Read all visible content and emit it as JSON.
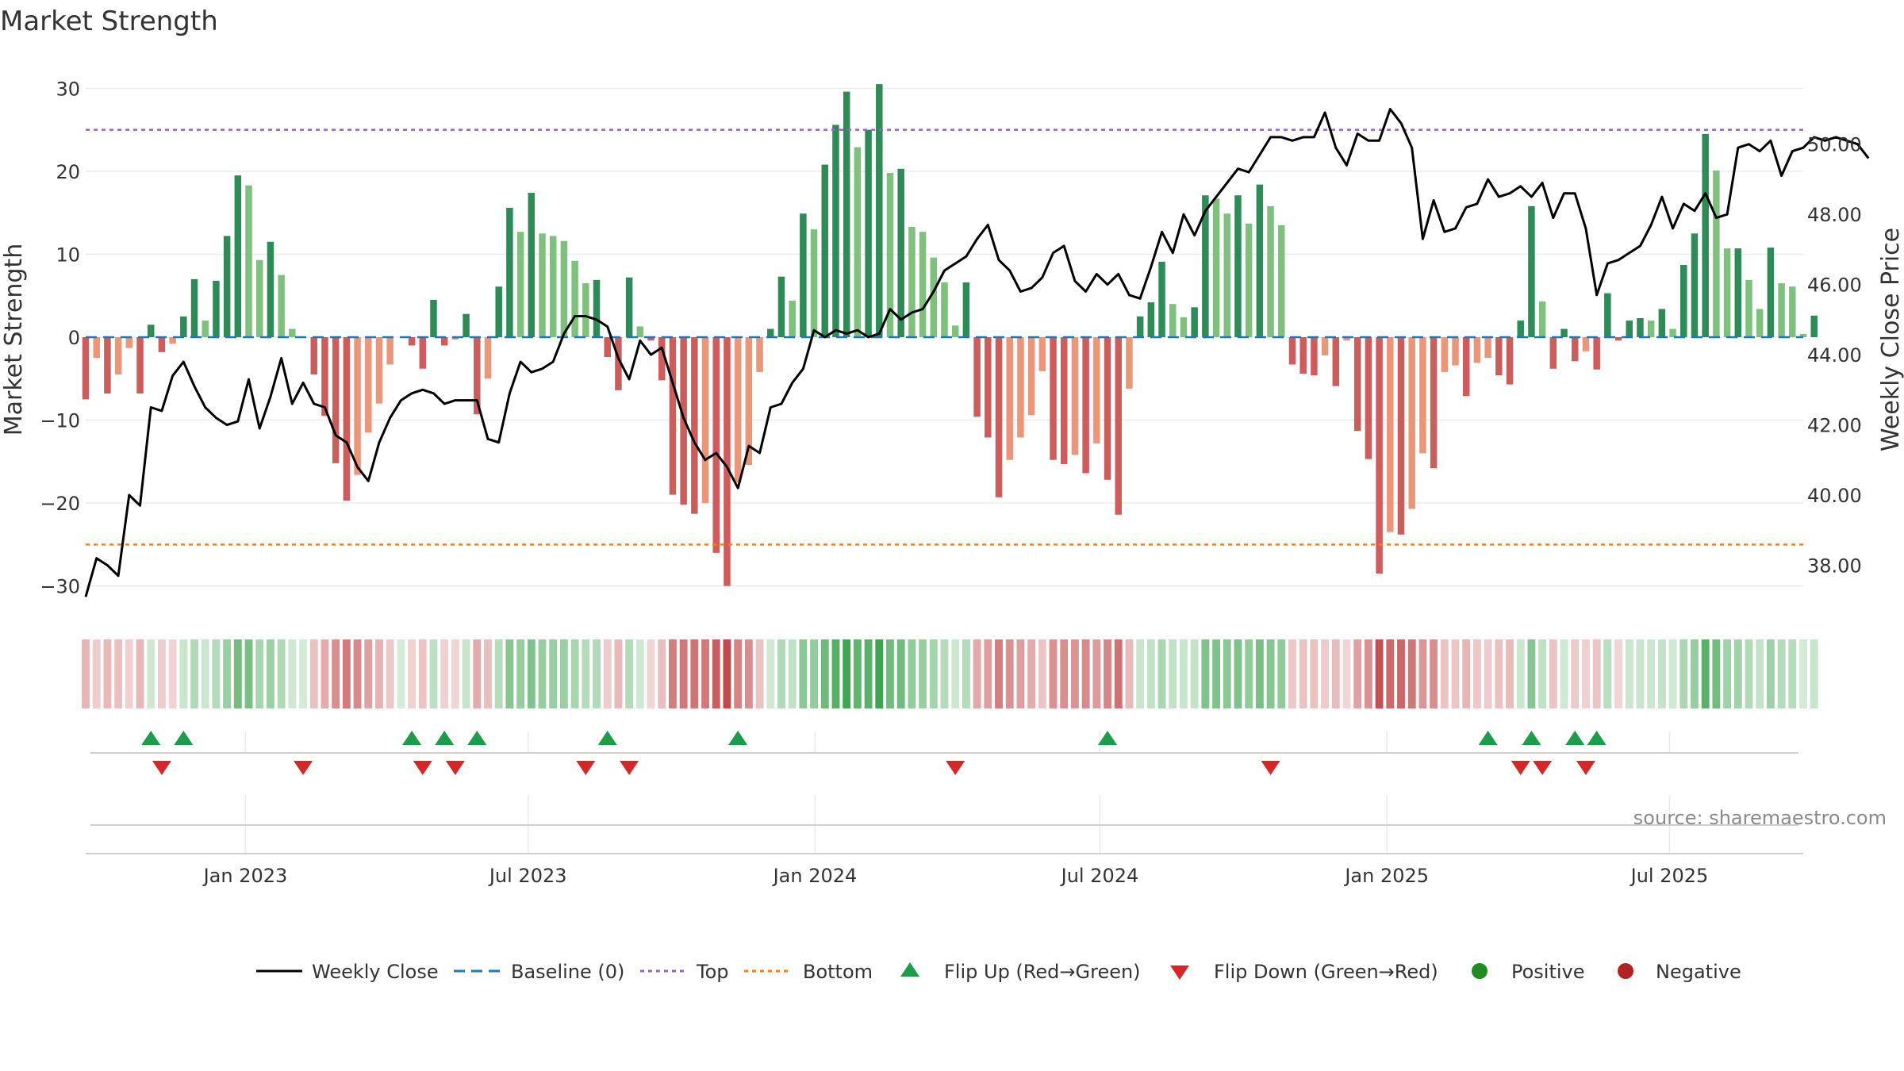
{
  "chart_data": {
    "type": "bar",
    "title": "Market Strength",
    "ylabel": "Market Strength",
    "ylabel_right": "Weekly Close Price",
    "ylim": [
      -33,
      33
    ],
    "ylim_right": [
      36.7,
      52.3
    ],
    "yticks": [
      30,
      20,
      10,
      0,
      -10,
      -20,
      -30
    ],
    "ytick_labels": [
      "30",
      "20",
      "10",
      "0",
      "−10",
      "−20",
      "−30"
    ],
    "yticks_right": [
      50,
      48,
      46,
      44,
      42,
      40,
      38
    ],
    "ytick_labels_right": [
      "50.00",
      "48.00",
      "46.00",
      "44.00",
      "42.00",
      "40.00",
      "38.00"
    ],
    "x_range_weeks": [
      0,
      158
    ],
    "x_ticks": [
      {
        "label": "Jan 2023",
        "week": 14.7
      },
      {
        "label": "Jul 2023",
        "week": 40.7
      },
      {
        "label": "Jan 2024",
        "week": 67.1
      },
      {
        "label": "Jul 2024",
        "week": 93.3
      },
      {
        "label": "Jan 2025",
        "week": 119.7
      },
      {
        "label": "Jul 2025",
        "week": 145.7
      }
    ],
    "top_line": 25,
    "bottom_line": -25,
    "baseline": 0,
    "strength": [
      -7.5,
      -2.5,
      -6.8,
      -4.5,
      -1.3,
      -6.8,
      1.5,
      -1.8,
      -0.8,
      2.5,
      7,
      2,
      6.8,
      12.2,
      19.5,
      18.3,
      9.3,
      11.5,
      7.5,
      1,
      0,
      -4.5,
      -9.5,
      -15.2,
      -19.7,
      -16.6,
      -11.5,
      -8,
      -3.3,
      0,
      -1,
      -3.8,
      4.5,
      -1,
      -0.3,
      2.8,
      -9.3,
      -5,
      6.1,
      15.6,
      12.7,
      17.4,
      12.5,
      12.2,
      11.6,
      9.2,
      6.5,
      6.9,
      -2.4,
      -6.4,
      7.2,
      1.3,
      -0.4,
      -5.2,
      -19,
      -20.2,
      -21.3,
      -20,
      -26,
      -30,
      -17.5,
      -15.4,
      -4.2,
      1,
      7.3,
      4.4,
      14.9,
      13,
      20.8,
      25.6,
      29.6,
      22.9,
      25,
      30.5,
      19.8,
      20.3,
      13.3,
      12.7,
      9.6,
      6.6,
      1.4,
      6.6,
      -9.6,
      -12.1,
      -19.3,
      -14.8,
      -12.1,
      -9.4,
      -4.1,
      -14.8,
      -15.3,
      -14.2,
      -16.4,
      -12.8,
      -17.2,
      -21.4,
      -6.2,
      2.5,
      4.2,
      9.1,
      4,
      2.4,
      3.6,
      17.1,
      16.7,
      14.9,
      17.1,
      13.7,
      18.4,
      15.8,
      13.5,
      -3.3,
      -4.4,
      -4.6,
      -2.2,
      -5.9,
      -0.4,
      -11.3,
      -14.7,
      -28.5,
      -23.5,
      -23.8,
      -20.7,
      -14,
      -15.8,
      -4.2,
      -3.4,
      -7.1,
      -3.1,
      -2.5,
      -4.6,
      -5.7,
      2,
      15.8,
      4.3,
      -3.8,
      1,
      -2.9,
      -1.7,
      -3.9,
      5.3,
      -0.4,
      2,
      2.3,
      2,
      3.4,
      1,
      8.7,
      12.5,
      24.5,
      20.1,
      10.7,
      10.7,
      6.9,
      3.4,
      10.8,
      6.5,
      6.1,
      0.4,
      2.6
    ],
    "weekly_close": [
      37.1,
      38.2,
      38.0,
      37.7,
      40.0,
      39.7,
      42.5,
      42.4,
      43.4,
      43.8,
      43.1,
      42.5,
      42.2,
      42.0,
      42.1,
      43.3,
      41.9,
      42.8,
      43.9,
      42.6,
      43.2,
      42.6,
      42.5,
      41.7,
      41.5,
      40.8,
      40.4,
      41.5,
      42.2,
      42.7,
      42.9,
      43.0,
      42.9,
      42.6,
      42.7,
      42.7,
      42.7,
      41.6,
      41.5,
      42.9,
      43.8,
      43.5,
      43.6,
      43.8,
      44.6,
      45.1,
      45.1,
      45.0,
      44.8,
      43.9,
      43.3,
      44.4,
      44.0,
      44.2,
      43.2,
      42.2,
      41.5,
      41.0,
      41.2,
      40.8,
      40.2,
      41.4,
      41.2,
      42.5,
      42.6,
      43.2,
      43.6,
      44.7,
      44.5,
      44.7,
      44.6,
      44.7,
      44.5,
      44.6,
      45.3,
      45.0,
      45.2,
      45.3,
      45.8,
      46.4,
      46.6,
      46.8,
      47.3,
      47.7,
      46.7,
      46.4,
      45.8,
      45.9,
      46.2,
      46.9,
      47.1,
      46.1,
      45.8,
      46.3,
      46.0,
      46.3,
      45.7,
      45.6,
      46.5,
      47.5,
      46.9,
      48.0,
      47.4,
      48.1,
      48.5,
      48.9,
      49.3,
      49.2,
      49.7,
      50.2,
      50.2,
      50.1,
      50.2,
      50.2,
      50.9,
      49.9,
      49.4,
      50.3,
      50.1,
      50.1,
      51.0,
      50.6,
      49.9,
      47.3,
      48.4,
      47.5,
      47.6,
      48.2,
      48.3,
      49.0,
      48.5,
      48.6,
      48.8,
      48.5,
      48.9,
      47.9,
      48.6,
      48.6,
      47.6,
      45.7,
      46.6,
      46.7,
      46.9,
      47.1,
      47.7,
      48.5,
      47.6,
      48.3,
      48.1,
      48.6,
      47.9,
      48.0,
      49.9,
      50.0,
      49.8,
      50.1,
      49.1,
      49.8,
      49.9,
      50.2,
      50.1,
      50.2,
      50.1,
      50.0,
      49.6
    ],
    "flips_up_weeks": [
      6,
      9,
      30,
      33,
      36,
      48,
      60,
      94,
      129,
      133,
      137,
      139
    ],
    "flips_down_weeks": [
      7,
      20,
      31,
      34,
      46,
      50,
      80,
      109,
      132,
      134,
      138
    ],
    "strip_type": "heatmap",
    "colors": {
      "strong_green": "#2e8b57",
      "light_green": "#7fc07f",
      "strong_red": "#cd5c5c",
      "light_red": "#e9967a",
      "heat_green": "#3ea34f",
      "heat_red": "#c0484a",
      "close_line": "#000000",
      "baseline": "#1f77b4",
      "top_line": "#9467bd",
      "bottom_line": "#ff7f0e",
      "flip_up": "#1e9c4b",
      "flip_down": "#d62728",
      "positive": "#228b22",
      "negative": "#b22222"
    },
    "legend": {
      "position": "bottom",
      "items": [
        {
          "label": "Weekly Close",
          "kind": "line-solid",
          "color": "#000000"
        },
        {
          "label": "Baseline (0)",
          "kind": "line-dashed",
          "color": "#1f77b4"
        },
        {
          "label": "Top",
          "kind": "line-dotted",
          "color": "#9467bd"
        },
        {
          "label": "Bottom",
          "kind": "line-dotted",
          "color": "#ff7f0e"
        },
        {
          "label": "Flip Up (Red→Green)",
          "kind": "triangle-up",
          "color": "#1e9c4b"
        },
        {
          "label": "Flip Down (Green→Red)",
          "kind": "triangle-down",
          "color": "#d62728"
        },
        {
          "label": "Positive",
          "kind": "circle",
          "color": "#228b22"
        },
        {
          "label": "Negative",
          "kind": "circle",
          "color": "#b22222"
        }
      ]
    },
    "source_text": "source: sharemaestro.com"
  }
}
